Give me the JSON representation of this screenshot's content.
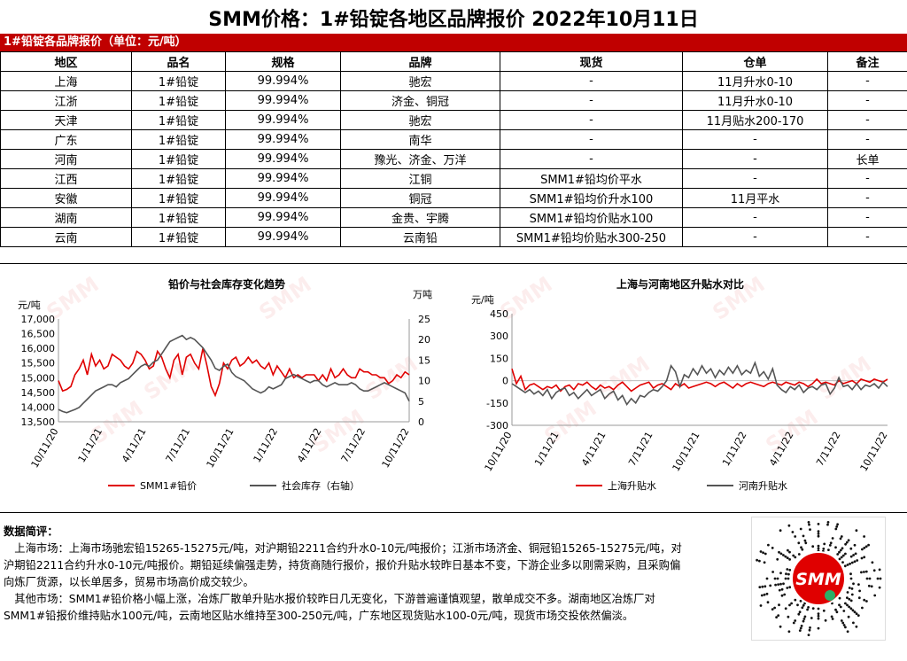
{
  "title": "SMM价格：1#铅锭各地区品牌报价  2022年10月11日",
  "table": {
    "section_title": "1#铅锭各品牌报价（单位：元/吨）",
    "headers": [
      "地区",
      "品名",
      "规格",
      "品牌",
      "现货",
      "仓单",
      "备注"
    ],
    "rows": [
      [
        "上海",
        "1#铅锭",
        "99.994%",
        "驰宏",
        "-",
        "11月升水0-10",
        "-"
      ],
      [
        "江浙",
        "1#铅锭",
        "99.994%",
        "济金、铜冠",
        "-",
        "11月升水0-10",
        "-"
      ],
      [
        "天津",
        "1#铅锭",
        "99.994%",
        "驰宏",
        "-",
        "11月贴水200-170",
        "-"
      ],
      [
        "广东",
        "1#铅锭",
        "99.994%",
        "南华",
        "-",
        "-",
        "-"
      ],
      [
        "河南",
        "1#铅锭",
        "99.994%",
        "豫光、济金、万洋",
        "-",
        "-",
        "长单"
      ],
      [
        "江西",
        "1#铅锭",
        "99.994%",
        "江铜",
        "SMM1#铅均价平水",
        "-",
        "-"
      ],
      [
        "安徽",
        "1#铅锭",
        "99.994%",
        "铜冠",
        "SMM1#铅均价升水100",
        "11月平水",
        "-"
      ],
      [
        "湖南",
        "1#铅锭",
        "99.994%",
        "金贵、宇腾",
        "SMM1#铅均价贴水100",
        "-",
        "-"
      ],
      [
        "云南",
        "1#铅锭",
        "99.994%",
        "云南铅",
        "SMM1#铅均价贴水300-250",
        "-",
        "-"
      ]
    ]
  },
  "watermark": "SMM",
  "chart_data": [
    {
      "type": "line",
      "title": "铅价与社会库存变化趋势",
      "y_left_unit": "元/吨",
      "y_right_unit": "万吨",
      "ylim_left": [
        13500,
        17000
      ],
      "ylim_right": [
        0,
        25
      ],
      "y_left_ticks": [
        "17,000",
        "16,500",
        "16,000",
        "15,500",
        "15,000",
        "14,500",
        "14,000",
        "13,500"
      ],
      "y_right_ticks": [
        "25",
        "20",
        "15",
        "10",
        "5",
        "0"
      ],
      "x_ticks": [
        "10/11/20",
        "1/11/21",
        "4/11/21",
        "7/11/21",
        "10/11/21",
        "1/11/22",
        "4/11/22",
        "7/11/22",
        "10/11/22"
      ],
      "series": [
        {
          "name": "SMM1#铅价",
          "color": "#e00000",
          "axis": "left",
          "values": [
            14900,
            14550,
            14600,
            14700,
            15100,
            15300,
            15600,
            15100,
            15800,
            15400,
            15600,
            15300,
            15400,
            15800,
            15700,
            15600,
            15400,
            15300,
            15500,
            15900,
            15800,
            15600,
            15300,
            15400,
            15900,
            15700,
            15300,
            15000,
            15600,
            15800,
            15100,
            15700,
            15800,
            15500,
            15300,
            16000,
            15400,
            14700,
            14400,
            14800,
            15500,
            15300,
            15600,
            15700,
            15400,
            15500,
            15700,
            15500,
            15600,
            15400,
            15300,
            15500,
            15100,
            15400,
            15200,
            15000,
            15300,
            15000,
            15100,
            15000,
            15100,
            15100,
            15100,
            14900,
            15100,
            14900,
            15300,
            15000,
            15100,
            15300,
            15100,
            15000,
            15000,
            15300,
            15200,
            15200,
            15100,
            15100,
            15000,
            15000,
            14800,
            14900,
            15100,
            15000,
            15200,
            15100
          ]
        },
        {
          "name": "社会库存（右轴）",
          "color": "#555555",
          "axis": "right",
          "values": [
            3.0,
            2.5,
            2.2,
            2.6,
            3.0,
            3.5,
            4.5,
            5.5,
            6.5,
            7.5,
            8.0,
            8.5,
            9.0,
            9.0,
            8.5,
            9.5,
            10.0,
            10.5,
            11.5,
            12.5,
            13.5,
            14.0,
            13.5,
            14.5,
            15.0,
            16.5,
            18.0,
            19.5,
            20.0,
            20.5,
            21.0,
            20.0,
            20.5,
            20.0,
            19.0,
            18.0,
            16.5,
            15.0,
            13.0,
            12.5,
            13.5,
            14.0,
            12.0,
            11.0,
            10.5,
            10.0,
            9.0,
            8.0,
            7.5,
            7.0,
            7.5,
            8.5,
            8.0,
            8.5,
            9.0,
            10.5,
            11.0,
            11.5,
            11.0,
            10.5,
            10.0,
            9.5,
            10.0,
            10.0,
            9.0,
            8.5,
            9.0,
            9.5,
            9.0,
            9.0,
            9.0,
            9.5,
            9.0,
            8.0,
            7.5,
            7.5,
            8.0,
            8.5,
            9.0,
            9.5,
            9.0,
            8.5,
            8.0,
            7.5,
            7.0,
            5.0
          ]
        }
      ]
    },
    {
      "type": "line",
      "title": "上海与河南地区升贴水对比",
      "y_unit": "元/吨",
      "ylim": [
        -300,
        450
      ],
      "y_ticks": [
        "450",
        "300",
        "150",
        "0",
        "-150",
        "-300"
      ],
      "x_ticks": [
        "10/11/20",
        "1/11/21",
        "4/11/21",
        "7/11/21",
        "10/11/21",
        "1/11/22",
        "4/11/22",
        "7/11/22",
        "10/11/22"
      ],
      "series": [
        {
          "name": "上海升贴水",
          "color": "#e00000",
          "values": [
            80,
            -20,
            30,
            -60,
            -30,
            -20,
            -40,
            -60,
            -40,
            -50,
            -30,
            -70,
            -40,
            -30,
            -60,
            -20,
            -30,
            -10,
            -40,
            -60,
            -30,
            -50,
            -40,
            -60,
            -30,
            -10,
            -40,
            -70,
            -50,
            -30,
            -20,
            -10,
            -50,
            -30,
            -20,
            -40,
            -60,
            -20,
            -40,
            -20,
            -50,
            -40,
            -30,
            -20,
            -10,
            -20,
            -40,
            -20,
            -10,
            -30,
            -50,
            -20,
            -40,
            -20,
            -10,
            -20,
            -30,
            -40,
            -20,
            -10,
            -20,
            -30,
            -10,
            -20,
            -30,
            -10,
            -20,
            -40,
            -20,
            10,
            -20,
            -10,
            -20,
            -30,
            0,
            -20,
            -10,
            0,
            -20,
            10,
            0,
            -10,
            10,
            0,
            -10,
            10
          ]
        },
        {
          "name": "河南升贴水",
          "color": "#555555",
          "values": [
            -20,
            -40,
            -60,
            -80,
            -60,
            -90,
            -70,
            -100,
            -60,
            -120,
            -80,
            -60,
            -50,
            -100,
            -80,
            -120,
            -90,
            -60,
            -100,
            -80,
            -60,
            -120,
            -90,
            -70,
            -130,
            -100,
            -160,
            -120,
            -150,
            -100,
            -110,
            -80,
            -60,
            -70,
            -40,
            0,
            100,
            60,
            -40,
            40,
            20,
            80,
            40,
            100,
            50,
            80,
            20,
            70,
            40,
            90,
            50,
            100,
            40,
            70,
            50,
            120,
            30,
            60,
            10,
            80,
            -30,
            -60,
            -80,
            -40,
            -60,
            -30,
            -80,
            -50,
            -40,
            -60,
            -30,
            -20,
            -90,
            -50,
            20,
            -40,
            -30,
            -60,
            -20,
            -60,
            -30,
            -40,
            -20,
            -50,
            -10,
            -40
          ]
        }
      ]
    }
  ],
  "commentary": {
    "heading": "数据简评：",
    "p1": "上海市场：上海市场驰宏铅15265-15275元/吨，对沪期铅2211合约升水0-10元/吨报价；江浙市场济金、铜冠铅15265-15275元/吨，对沪期铅2211合约升水0-10元/吨报价。期铅延续偏强走势，持货商随行报价，报价升贴水较昨日基本不变，下游企业多以刚需采购，且采购偏向炼厂货源，以长单居多，贸易市场高价成交较少。",
    "p2": "其他市场：SMM1#铅价格小幅上涨，冶炼厂散单升贴水报价较昨日几无变化，下游普遍谨慎观望，散单成交不多。湖南地区冶炼厂对SMM1#铅报价维持贴水100元/吨，云南地区贴水维持至300-250元/吨，广东地区现货贴水100-0元/吨，现货市场交投依然偏淡。"
  },
  "qr_brand": "SMM"
}
